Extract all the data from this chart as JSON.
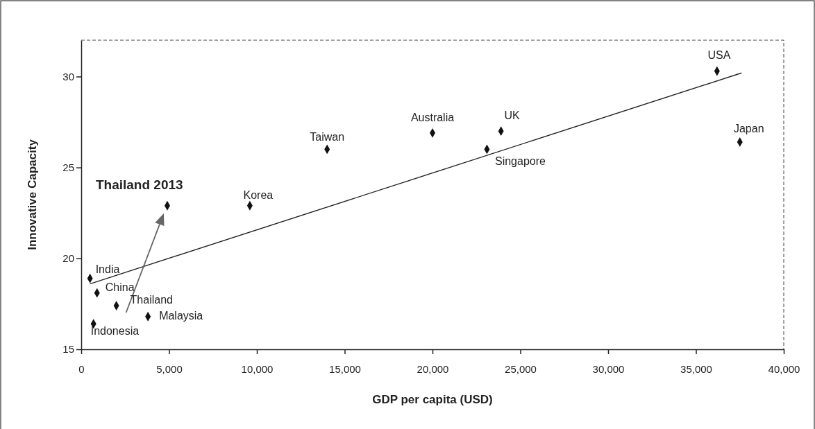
{
  "chart_data": {
    "type": "scatter",
    "xlabel": "GDP per capita (USD)",
    "ylabel": "Innovative Capacity",
    "xlim": [
      0,
      40000
    ],
    "ylim": [
      15,
      32
    ],
    "xticks": [
      {
        "value": 0,
        "label": "0"
      },
      {
        "value": 5000,
        "label": "5,000"
      },
      {
        "value": 10000,
        "label": "10,000"
      },
      {
        "value": 15000,
        "label": "15,000"
      },
      {
        "value": 20000,
        "label": "20,000"
      },
      {
        "value": 25000,
        "label": "25,000"
      },
      {
        "value": 30000,
        "label": "30,000"
      },
      {
        "value": 35000,
        "label": "35,000"
      },
      {
        "value": 40000,
        "label": "40,000"
      }
    ],
    "yticks": [
      15,
      20,
      25,
      30
    ],
    "grid": false,
    "series": [
      {
        "marker": "diamond",
        "color": "#111111",
        "x": [
          500,
          900,
          2000,
          700,
          3800,
          4900,
          9600,
          14000,
          20000,
          23900,
          23100,
          36200,
          37500
        ],
        "values": [
          18.9,
          18.1,
          17.4,
          16.4,
          16.8,
          22.9,
          22.9,
          26.0,
          26.9,
          27.0,
          26.0,
          30.3,
          26.4
        ]
      },
      {
        "type": "line",
        "color": "#222222",
        "x": [
          500,
          37600
        ],
        "values": [
          18.6,
          30.2
        ]
      }
    ],
    "annotations": [
      {
        "text": "India",
        "x": 500,
        "y": 18.9
      },
      {
        "text": "China",
        "x": 900,
        "y": 18.1
      },
      {
        "text": "Thailand",
        "x": 2000,
        "y": 17.4
      },
      {
        "text": "Indonesia",
        "x": 700,
        "y": 16.4
      },
      {
        "text": "Malaysia",
        "x": 3800,
        "y": 16.8
      },
      {
        "text": "Thailand 2013",
        "x": 4900,
        "y": 22.9
      },
      {
        "text": "Korea",
        "x": 9600,
        "y": 22.9
      },
      {
        "text": "Taiwan",
        "x": 14000,
        "y": 26.0
      },
      {
        "text": "Australia",
        "x": 20000,
        "y": 26.9
      },
      {
        "text": "UK",
        "x": 23900,
        "y": 27.0
      },
      {
        "text": "Singapore",
        "x": 23100,
        "y": 26.0
      },
      {
        "text": "USA",
        "x": 36200,
        "y": 30.3
      },
      {
        "text": "Japan",
        "x": 37500,
        "y": 26.4
      }
    ]
  }
}
